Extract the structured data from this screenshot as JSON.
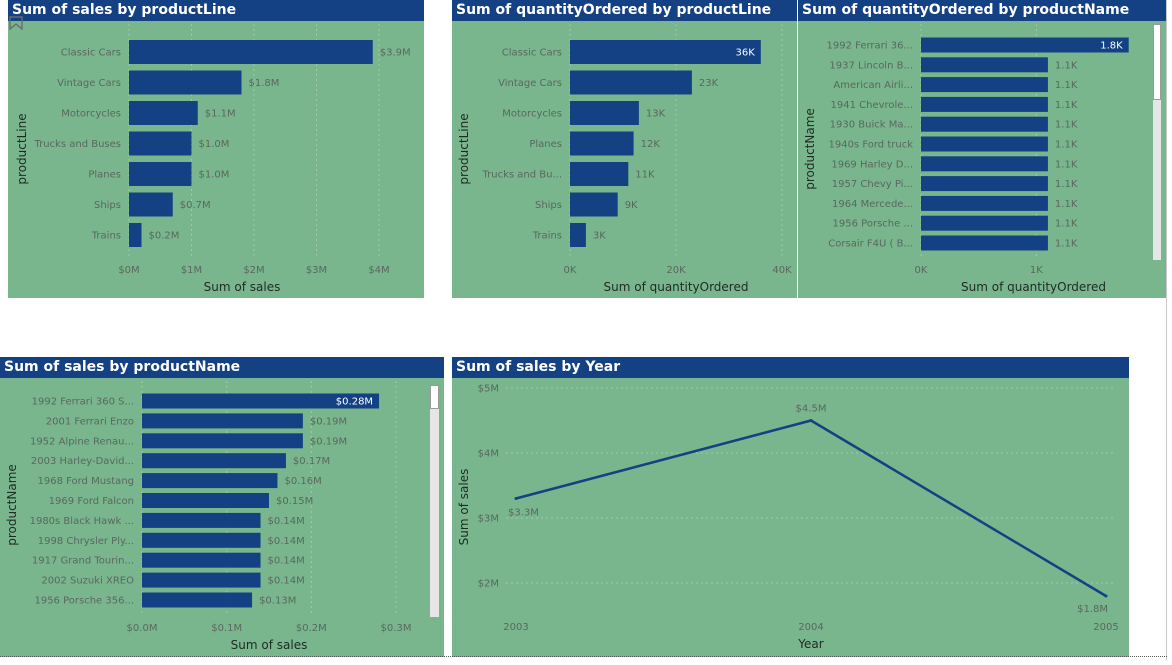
{
  "chart_data": [
    {
      "id": "c1",
      "type": "bar",
      "orientation": "horizontal",
      "title": "Sum of sales by productLine",
      "xlabel": "Sum of sales",
      "ylabel": "productLine",
      "categories": [
        "Classic Cars",
        "Vintage Cars",
        "Motorcycles",
        "Trucks and Buses",
        "Planes",
        "Ships",
        "Trains"
      ],
      "values": [
        3.9,
        1.8,
        1.1,
        1.0,
        1.0,
        0.7,
        0.2
      ],
      "data_labels": [
        "$3.9M",
        "$1.8M",
        "$1.1M",
        "$1.0M",
        "$1.0M",
        "$0.7M",
        "$0.2M"
      ],
      "xticks": [
        0,
        1,
        2,
        3,
        4
      ],
      "xtick_labels": [
        "$0M",
        "$1M",
        "$2M",
        "$3M",
        "$4M"
      ],
      "xlim": [
        0,
        4.0
      ],
      "grid": true
    },
    {
      "id": "c2",
      "type": "bar",
      "orientation": "horizontal",
      "title": "Sum of quantityOrdered by productLine",
      "xlabel": "Sum of quantityOrdered",
      "ylabel": "productLine",
      "categories": [
        "Classic Cars",
        "Vintage Cars",
        "Motorcycles",
        "Planes",
        "Trucks and Bu...",
        "Ships",
        "Trains"
      ],
      "values": [
        36,
        23,
        13,
        12,
        11,
        9,
        3
      ],
      "data_labels": [
        "36K",
        "23K",
        "13K",
        "12K",
        "11K",
        "9K",
        "3K"
      ],
      "xticks": [
        0,
        20,
        40
      ],
      "xtick_labels": [
        "0K",
        "20K",
        "40K"
      ],
      "xlim": [
        0,
        40
      ],
      "grid": true
    },
    {
      "id": "c3",
      "type": "bar",
      "orientation": "horizontal",
      "title": "Sum of quantityOrdered by productName",
      "xlabel": "Sum of quantityOrdered",
      "ylabel": "productName",
      "categories": [
        "1992 Ferrari 36...",
        "1937 Lincoln B...",
        "American Airli...",
        "1941 Chevrole...",
        "1930 Buick Ma...",
        "1940s Ford truck",
        "1969 Harley D...",
        "1957 Chevy Pi...",
        "1964 Mercede...",
        "1956 Porsche ...",
        "Corsair F4U ( B..."
      ],
      "values": [
        1.8,
        1.1,
        1.1,
        1.1,
        1.1,
        1.1,
        1.1,
        1.1,
        1.1,
        1.1,
        1.1
      ],
      "data_labels": [
        "1.8K",
        "1.1K",
        "1.1K",
        "1.1K",
        "1.1K",
        "1.1K",
        "1.1K",
        "1.1K",
        "1.1K",
        "1.1K",
        "1.1K"
      ],
      "xticks": [
        0,
        1
      ],
      "xtick_labels": [
        "0K",
        "1K"
      ],
      "xlim": [
        0,
        1.95
      ],
      "grid": true
    },
    {
      "id": "c4",
      "type": "bar",
      "orientation": "horizontal",
      "title": "Sum of sales by productName",
      "xlabel": "Sum of sales",
      "ylabel": "productName",
      "categories": [
        "1992 Ferrari 360 S...",
        "2001 Ferrari Enzo",
        "1952 Alpine Renau...",
        "2003 Harley-David...",
        "1968 Ford Mustang",
        "1969 Ford Falcon",
        "1980s Black Hawk ...",
        "1998 Chrysler Ply...",
        "1917 Grand Tourin...",
        "2002 Suzuki XREO",
        "1956 Porsche 356..."
      ],
      "values": [
        0.28,
        0.19,
        0.19,
        0.17,
        0.16,
        0.15,
        0.14,
        0.14,
        0.14,
        0.14,
        0.13
      ],
      "data_labels": [
        "$0.28M",
        "$0.19M",
        "$0.19M",
        "$0.17M",
        "$0.16M",
        "$0.15M",
        "$0.14M",
        "$0.14M",
        "$0.14M",
        "$0.14M",
        "$0.13M"
      ],
      "xticks": [
        0,
        0.1,
        0.2,
        0.3
      ],
      "xtick_labels": [
        "$0.0M",
        "$0.1M",
        "$0.2M",
        "$0.3M"
      ],
      "xlim": [
        0,
        0.3
      ],
      "grid": true
    },
    {
      "id": "c5",
      "type": "line",
      "title": "Sum of sales by Year",
      "xlabel": "Year",
      "ylabel": "Sum of sales",
      "x": [
        2003,
        2004,
        2005
      ],
      "y": [
        3.3,
        4.5,
        1.8
      ],
      "data_labels": [
        "$3.3M",
        "$4.5M",
        "$1.8M"
      ],
      "xtick_labels": [
        "2003",
        "2004",
        "2005"
      ],
      "yticks": [
        2,
        3,
        4,
        5
      ],
      "ytick_labels": [
        "$2M",
        "$3M",
        "$4M",
        "$5M"
      ],
      "ylim": [
        1.8,
        5.0
      ],
      "grid": true
    }
  ],
  "colors": {
    "bar": "#134183",
    "panel_bg": "#79b68d",
    "title_bg": "#134183",
    "title_text": "#ffffff"
  },
  "icons": {
    "bookmark": "bookmark-icon"
  }
}
